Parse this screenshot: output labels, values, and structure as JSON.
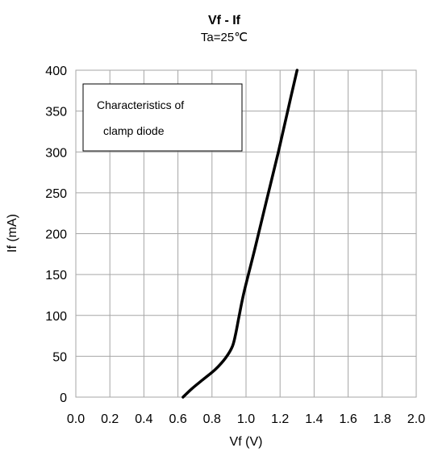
{
  "chart_data": {
    "type": "line",
    "title": "Vf - If",
    "subtitle": "Ta=25℃",
    "xlabel": "Vf (V)",
    "ylabel": "If (mA)",
    "xlim": [
      0.0,
      2.0
    ],
    "ylim": [
      0,
      400
    ],
    "x_ticks": [
      "0.0",
      "0.2",
      "0.4",
      "0.6",
      "0.8",
      "1.0",
      "1.2",
      "1.4",
      "1.6",
      "1.8",
      "2.0"
    ],
    "y_ticks": [
      "0",
      "50",
      "100",
      "150",
      "200",
      "250",
      "300",
      "350",
      "400"
    ],
    "grid": true,
    "legend": "none",
    "annotation": {
      "line1": "Characteristics of",
      "line2": "clamp diode",
      "position": "top-left"
    },
    "series": [
      {
        "color": "#000000",
        "x": [
          0.63,
          0.68,
          0.75,
          0.82,
          0.88,
          0.92,
          0.94,
          0.96,
          0.99,
          1.05,
          1.12,
          1.19,
          1.25,
          1.3
        ],
        "y": [
          0,
          10,
          22,
          34,
          48,
          62,
          78,
          100,
          130,
          180,
          240,
          300,
          355,
          400
        ]
      }
    ]
  }
}
